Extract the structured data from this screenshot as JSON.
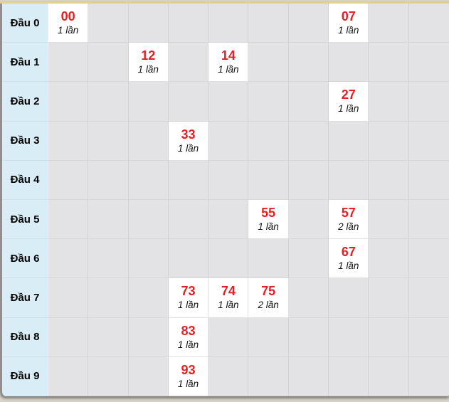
{
  "colors": {
    "accent_red": "#e32124",
    "row_header_bg": "#d9edf7",
    "empty_cell_bg": "#e3e3e5",
    "filled_cell_bg": "#ffffff",
    "top_bar": "#ddd294",
    "page_bg": "#d7d3c8"
  },
  "chart_data": {
    "type": "table",
    "row_headers": [
      "Đầu 0",
      "Đầu 1",
      "Đầu 2",
      "Đầu 3",
      "Đầu 4",
      "Đầu 5",
      "Đầu 6",
      "Đầu 7",
      "Đầu 8",
      "Đầu 9"
    ],
    "num_columns": 10,
    "entries": [
      {
        "row": 0,
        "col": 0,
        "number": "00",
        "count": "1 lần"
      },
      {
        "row": 0,
        "col": 7,
        "number": "07",
        "count": "1 lần"
      },
      {
        "row": 1,
        "col": 2,
        "number": "12",
        "count": "1 lần"
      },
      {
        "row": 1,
        "col": 4,
        "number": "14",
        "count": "1 lần"
      },
      {
        "row": 2,
        "col": 7,
        "number": "27",
        "count": "1 lần"
      },
      {
        "row": 3,
        "col": 3,
        "number": "33",
        "count": "1 lần"
      },
      {
        "row": 5,
        "col": 5,
        "number": "55",
        "count": "1 lần"
      },
      {
        "row": 5,
        "col": 7,
        "number": "57",
        "count": "2 lần"
      },
      {
        "row": 6,
        "col": 7,
        "number": "67",
        "count": "1 lần"
      },
      {
        "row": 7,
        "col": 3,
        "number": "73",
        "count": "1 lần"
      },
      {
        "row": 7,
        "col": 4,
        "number": "74",
        "count": "1 lần"
      },
      {
        "row": 7,
        "col": 5,
        "number": "75",
        "count": "2 lần"
      },
      {
        "row": 8,
        "col": 3,
        "number": "83",
        "count": "1 lần"
      },
      {
        "row": 9,
        "col": 3,
        "number": "93",
        "count": "1 lần"
      }
    ]
  }
}
